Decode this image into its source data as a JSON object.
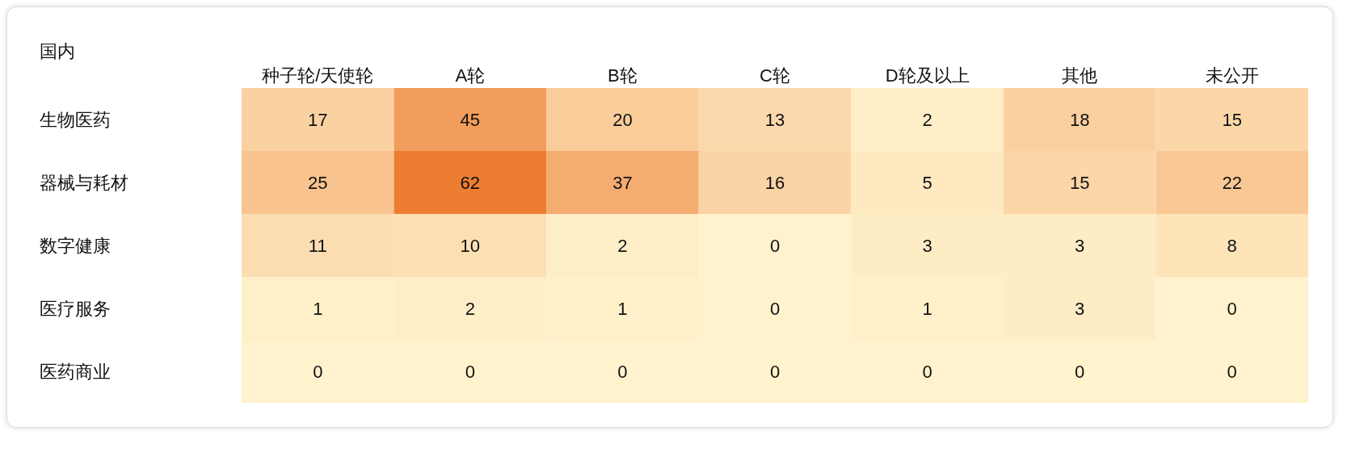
{
  "chart_data": {
    "type": "heatmap",
    "title": "国内",
    "categories": [
      "种子轮/天使轮",
      "A轮",
      "B轮",
      "C轮",
      "D轮及以上",
      "其他",
      "未公开"
    ],
    "y_categories": [
      "生物医药",
      "器械与耗材",
      "数字健康",
      "医疗服务",
      "医药商业"
    ],
    "cells": [
      [
        17,
        45,
        20,
        13,
        2,
        18,
        15
      ],
      [
        25,
        62,
        37,
        16,
        5,
        15,
        22
      ],
      [
        11,
        10,
        2,
        0,
        3,
        3,
        8
      ],
      [
        1,
        2,
        1,
        0,
        1,
        3,
        0
      ],
      [
        0,
        0,
        0,
        0,
        0,
        0,
        0
      ]
    ],
    "colors": [
      "#fff2cc",
      "#ed7d31"
    ],
    "data_labels": true
  }
}
